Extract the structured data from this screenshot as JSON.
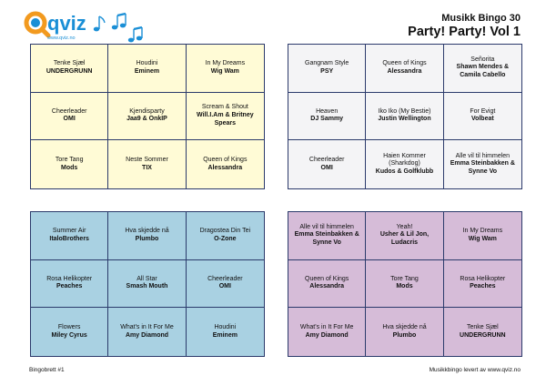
{
  "header": {
    "subtitle": "Musikk Bingo 30",
    "title": "Party! Party! Vol 1"
  },
  "logo": {
    "text": "qviz",
    "url": "www.qviz.no",
    "icon": "music-notes-icon"
  },
  "colors": {
    "border": "#2b3a6b",
    "card1": "#fffbd6",
    "card2": "#f4f4f6",
    "card3": "#a9d1e2",
    "card4": "#d6bcd8",
    "logo_orange": "#f29a1f",
    "logo_blue": "#1a8fd6"
  },
  "cards": [
    {
      "cells": [
        {
          "song": "Tenke Sjæl",
          "artist": "UNDERGRUNN"
        },
        {
          "song": "Houdini",
          "artist": "Eminem"
        },
        {
          "song": "In My Dreams",
          "artist": "Wig Wam"
        },
        {
          "song": "Cheerleader",
          "artist": "OMI"
        },
        {
          "song": "Kjendisparty",
          "artist": "Jaa9 & OnkIP"
        },
        {
          "song": "Scream & Shout",
          "artist": "Will.I.Am & Britney Spears"
        },
        {
          "song": "Tore Tang",
          "artist": "Mods"
        },
        {
          "song": "Neste Sommer",
          "artist": "TIX"
        },
        {
          "song": "Queen of Kings",
          "artist": "Alessandra"
        }
      ]
    },
    {
      "cells": [
        {
          "song": "Gangnam Style",
          "artist": "PSY"
        },
        {
          "song": "Queen of Kings",
          "artist": "Alessandra"
        },
        {
          "song": "Señorita",
          "artist": "Shawn Mendes & Camila Cabello"
        },
        {
          "song": "Heaven",
          "artist": "DJ Sammy"
        },
        {
          "song": "Iko Iko (My Bestie)",
          "artist": "Justin Wellington"
        },
        {
          "song": "For Evigt",
          "artist": "Volbeat"
        },
        {
          "song": "Cheerleader",
          "artist": "OMI"
        },
        {
          "song": "Haien Kommer (Sharkdog)",
          "artist": "Kudos & Golfklubb"
        },
        {
          "song": "Alle vil til himmelen",
          "artist": "Emma Steinbakken & Synne Vo"
        }
      ]
    },
    {
      "cells": [
        {
          "song": "Summer Air",
          "artist": "ItaloBrothers"
        },
        {
          "song": "Hva skjedde nå",
          "artist": "Plumbo"
        },
        {
          "song": "Dragostea Din Tei",
          "artist": "O-Zone"
        },
        {
          "song": "Rosa Helikopter",
          "artist": "Peaches"
        },
        {
          "song": "All Star",
          "artist": "Smash Mouth"
        },
        {
          "song": "Cheerleader",
          "artist": "OMI"
        },
        {
          "song": "Flowers",
          "artist": "Miley Cyrus"
        },
        {
          "song": "What's in It For Me",
          "artist": "Amy Diamond"
        },
        {
          "song": "Houdini",
          "artist": "Eminem"
        }
      ]
    },
    {
      "cells": [
        {
          "song": "Alle vil til himmelen",
          "artist": "Emma Steinbakken & Synne Vo"
        },
        {
          "song": "Yeah!",
          "artist": "Usher & Lil Jon, Ludacris"
        },
        {
          "song": "In My Dreams",
          "artist": "Wig Wam"
        },
        {
          "song": "Queen of Kings",
          "artist": "Alessandra"
        },
        {
          "song": "Tore Tang",
          "artist": "Mods"
        },
        {
          "song": "Rosa Helikopter",
          "artist": "Peaches"
        },
        {
          "song": "What's in It For Me",
          "artist": "Amy Diamond"
        },
        {
          "song": "Hva skjedde nå",
          "artist": "Plumbo"
        },
        {
          "song": "Tenke Sjæl",
          "artist": "UNDERGRUNN"
        }
      ]
    }
  ],
  "footer": {
    "left": "Bingobrett #1",
    "right": "Musikkbingo levert av www.qviz.no"
  }
}
